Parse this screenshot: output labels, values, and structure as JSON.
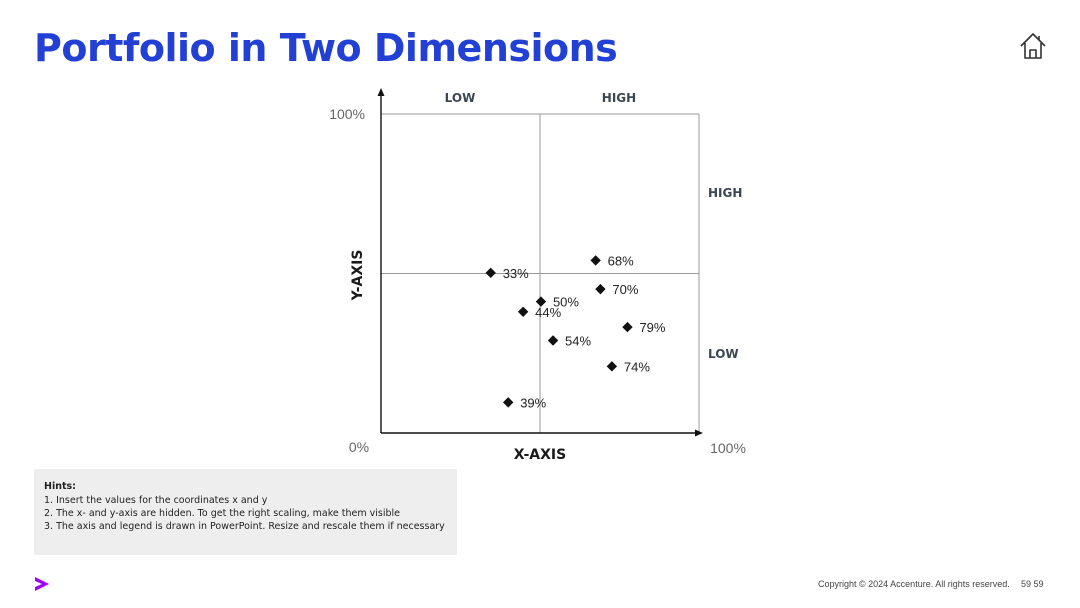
{
  "slide": {
    "title": "Portfolio in Two Dimensions",
    "title_color": "#2241d4",
    "home_icon": "home-icon"
  },
  "chart_data": {
    "type": "scatter",
    "xlabel": "X-AXIS",
    "ylabel": "Y-AXIS",
    "xlim": [
      0,
      100
    ],
    "ylim": [
      0,
      100
    ],
    "x_tick_labels": [
      "0%",
      "100%"
    ],
    "y_tick_labels": [
      "100%"
    ],
    "top_quadrant_labels": [
      "LOW",
      "HIGH"
    ],
    "right_quadrant_labels": [
      "HIGH",
      "LOW"
    ],
    "quadrant_divider": {
      "x": 50,
      "y": 50
    },
    "marker": "diamond",
    "marker_color": "#111111",
    "points": [
      {
        "label": "33%",
        "x": 34.5,
        "y": 50.2
      },
      {
        "label": "68%",
        "x": 67.5,
        "y": 54.1
      },
      {
        "label": "50%",
        "x": 50.3,
        "y": 41.2
      },
      {
        "label": "70%",
        "x": 69.0,
        "y": 45.1
      },
      {
        "label": "44%",
        "x": 44.7,
        "y": 38.0
      },
      {
        "label": "79%",
        "x": 77.5,
        "y": 33.2
      },
      {
        "label": "54%",
        "x": 54.1,
        "y": 29.0
      },
      {
        "label": "74%",
        "x": 72.6,
        "y": 20.9
      },
      {
        "label": "39%",
        "x": 40.0,
        "y": 9.6
      }
    ]
  },
  "hints": {
    "title": "Hints:",
    "items": [
      "1. Insert the values for the coordinates x and y",
      "2. The x- and y-axis are hidden. To get the right scaling, make them visible",
      "3. The axis and legend is drawn in PowerPoint. Resize and rescale them if necessary"
    ]
  },
  "footer": {
    "logo": "accenture-logo",
    "logo_color": "#a100ff",
    "copyright": "Copyright © 2024 Accenture. All rights reserved.",
    "page_number": "59 59"
  }
}
